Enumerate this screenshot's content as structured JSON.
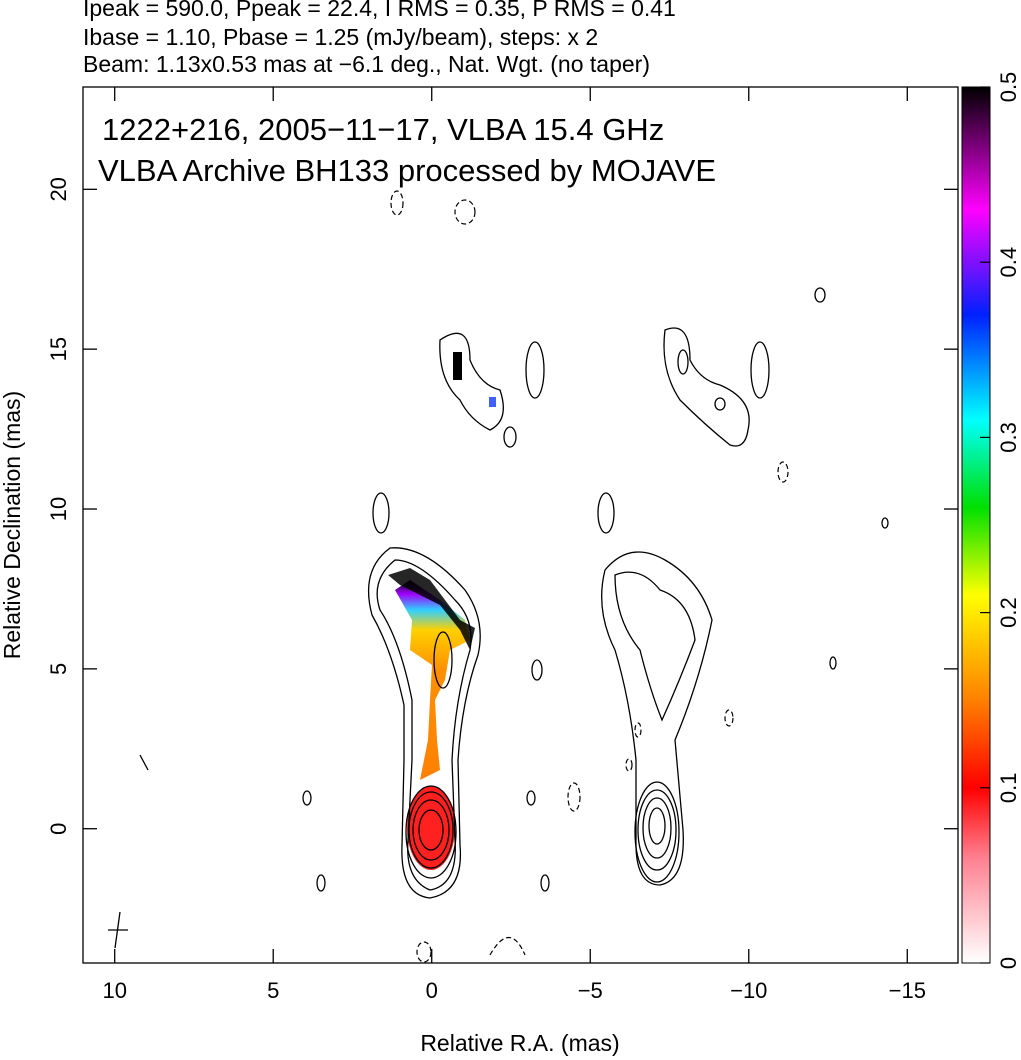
{
  "chart_data": {
    "type": "contour",
    "title_lines": [
      "Ipeak = 590.0, Ppeak = 22.4, I RMS = 0.35, P RMS = 0.41",
      "Ibase = 1.10, Pbase = 1.25 (mJy/beam), steps: x 2",
      "Beam: 1.13x0.53 mas at −6.1 deg., Nat. Wgt. (no taper)"
    ],
    "annotations": [
      "1222+216, 2005−11−17, VLBA 15.4 GHz",
      "VLBA Archive BH133 processed by MOJAVE"
    ],
    "xlabel": "Relative R.A. (mas)",
    "ylabel": "Relative Declination (mas)",
    "xlim": [
      11.0,
      -16.6
    ],
    "xticks": [
      10,
      5,
      0,
      {
        "value": -5,
        "label": "−5"
      },
      {
        "value": -10,
        "label": "−10"
      },
      {
        "value": -15,
        "label": "−15"
      }
    ],
    "ylim": [
      -4.2,
      23.2
    ],
    "yticks": [
      0,
      5,
      10,
      15,
      20
    ],
    "colorbar": {
      "lim": [
        0,
        0.5
      ],
      "ticks": [
        0,
        0.1,
        0.2,
        0.3,
        0.4,
        0.5
      ]
    }
  }
}
